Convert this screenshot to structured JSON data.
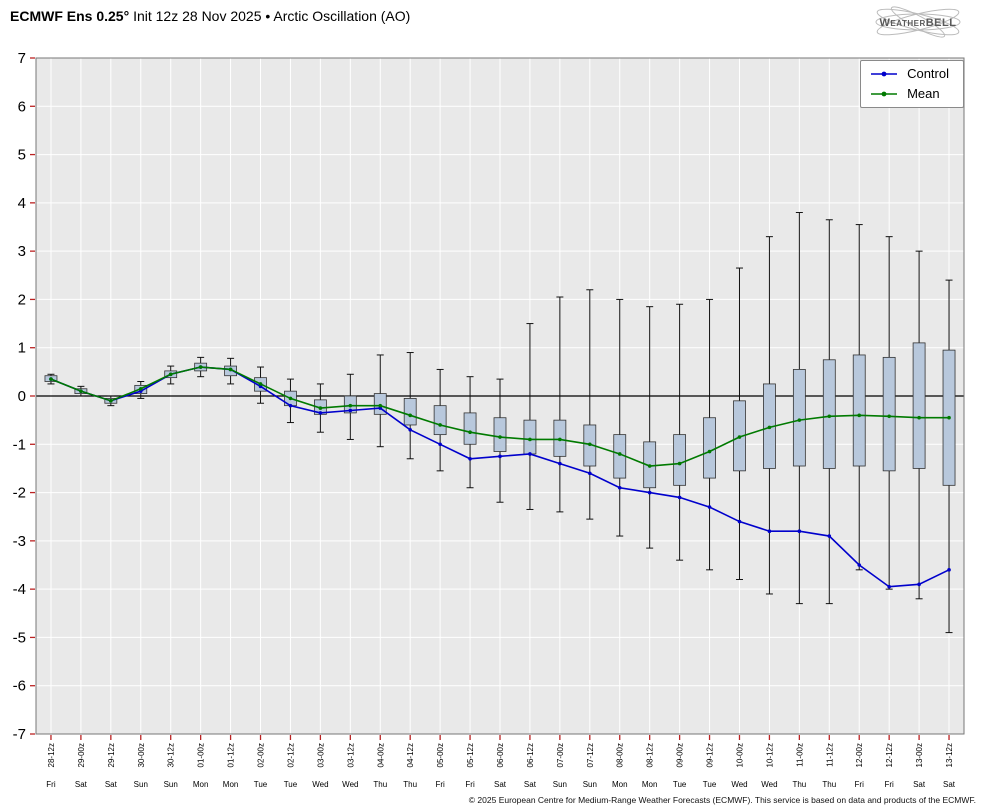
{
  "header": {
    "title_bold": "ECMWF Ens 0.25°",
    "title_rest": " Init 12z 28 Nov 2025 • Arctic Oscillation (AO)",
    "logo_text": "WeatherBELL"
  },
  "legend": {
    "control": "Control",
    "mean": "Mean"
  },
  "footer": "© 2025 European Centre for Medium-Range Weather Forecasts (ECMWF). This service is based on data and products of the ECMWF.",
  "colors": {
    "control": "#0000cc",
    "mean": "#007a00",
    "box_fill": "#b8c8dc",
    "box_edge": "#333333",
    "whisker": "#111111",
    "plot_bg": "#e9e9e9",
    "grid": "#ffffff",
    "tick": "#bb2222",
    "zero_line": "#000000"
  },
  "chart_data": {
    "type": "box-whisker ensemble plume with control and mean lines",
    "title": "ECMWF Ens 0.25° Init 12z 28 Nov 2025 • Arctic Oscillation (AO)",
    "ylabel": "",
    "ylim": [
      -7,
      7
    ],
    "yticks": [
      7,
      6,
      5,
      4,
      3,
      2,
      1,
      0,
      -1,
      -2,
      -3,
      -4,
      -5,
      -6,
      -7
    ],
    "grid": true,
    "legend_position": "top-right",
    "x_labels": [
      "28-12z",
      "29-00z",
      "29-12z",
      "30-00z",
      "30-12z",
      "01-00z",
      "01-12z",
      "02-00z",
      "02-12z",
      "03-00z",
      "03-12z",
      "04-00z",
      "04-12z",
      "05-00z",
      "05-12z",
      "06-00z",
      "06-12z",
      "07-00z",
      "07-12z",
      "08-00z",
      "08-12z",
      "09-00z",
      "09-12z",
      "10-00z",
      "10-12z",
      "11-00z",
      "11-12z",
      "12-00z",
      "12-12z",
      "13-00z",
      "13-12z"
    ],
    "x_day_labels": [
      "Fri",
      "Sat",
      "Sat",
      "Sun",
      "Sun",
      "Mon",
      "Mon",
      "Tue",
      "Tue",
      "Wed",
      "Wed",
      "Thu",
      "Thu",
      "Fri",
      "Fri",
      "Sat",
      "Sat",
      "Sun",
      "Sun",
      "Mon",
      "Mon",
      "Tue",
      "Tue",
      "Wed",
      "Wed",
      "Thu",
      "Thu",
      "Fri",
      "Fri",
      "Sat",
      "Sat"
    ],
    "series": [
      {
        "name": "Control",
        "values": [
          0.35,
          0.1,
          -0.1,
          0.1,
          0.45,
          0.6,
          0.55,
          0.2,
          -0.2,
          -0.35,
          -0.3,
          -0.25,
          -0.7,
          -1.0,
          -1.3,
          -1.25,
          -1.2,
          -1.4,
          -1.6,
          -1.9,
          -2.0,
          -2.1,
          -2.3,
          -2.6,
          -2.8,
          -2.8,
          -2.9,
          -3.5,
          -3.95,
          -3.9,
          -3.6
        ]
      },
      {
        "name": "Mean",
        "values": [
          0.35,
          0.1,
          -0.1,
          0.15,
          0.45,
          0.6,
          0.55,
          0.25,
          -0.05,
          -0.25,
          -0.2,
          -0.2,
          -0.4,
          -0.6,
          -0.75,
          -0.85,
          -0.9,
          -0.9,
          -1.0,
          -1.2,
          -1.45,
          -1.4,
          -1.15,
          -0.85,
          -0.65,
          -0.5,
          -0.42,
          -0.4,
          -0.42,
          -0.45,
          -0.45
        ]
      }
    ],
    "box_low": [
      0.3,
      0.05,
      -0.15,
      0.05,
      0.38,
      0.52,
      0.42,
      0.1,
      -0.2,
      -0.38,
      -0.35,
      -0.38,
      -0.6,
      -0.8,
      -1.0,
      -1.15,
      -1.2,
      -1.25,
      -1.45,
      -1.7,
      -1.9,
      -1.85,
      -1.7,
      -1.55,
      -1.5,
      -1.45,
      -1.5,
      -1.45,
      -1.55,
      -1.5,
      -1.85
    ],
    "box_high": [
      0.42,
      0.15,
      -0.05,
      0.22,
      0.52,
      0.68,
      0.62,
      0.38,
      0.1,
      -0.08,
      0.0,
      0.05,
      -0.05,
      -0.2,
      -0.35,
      -0.45,
      -0.5,
      -0.5,
      -0.6,
      -0.8,
      -0.95,
      -0.8,
      -0.45,
      -0.1,
      0.25,
      0.55,
      0.75,
      0.85,
      0.8,
      1.1,
      0.95
    ],
    "whisker_low": [
      0.25,
      0.0,
      -0.2,
      -0.05,
      0.25,
      0.4,
      0.25,
      -0.15,
      -0.55,
      -0.75,
      -0.9,
      -1.05,
      -1.3,
      -1.55,
      -1.9,
      -2.2,
      -2.35,
      -2.4,
      -2.55,
      -2.9,
      -3.15,
      -3.4,
      -3.6,
      -3.8,
      -4.1,
      -4.3,
      -4.3,
      -3.6,
      -4.0,
      -4.2,
      -4.9
    ],
    "whisker_high": [
      0.45,
      0.2,
      0.0,
      0.3,
      0.62,
      0.8,
      0.78,
      0.6,
      0.35,
      0.25,
      0.45,
      0.85,
      0.9,
      0.55,
      0.4,
      0.35,
      1.5,
      2.05,
      2.2,
      2.0,
      1.85,
      1.9,
      2.0,
      2.65,
      3.3,
      3.8,
      3.65,
      3.55,
      3.3,
      3.0,
      2.4
    ]
  }
}
